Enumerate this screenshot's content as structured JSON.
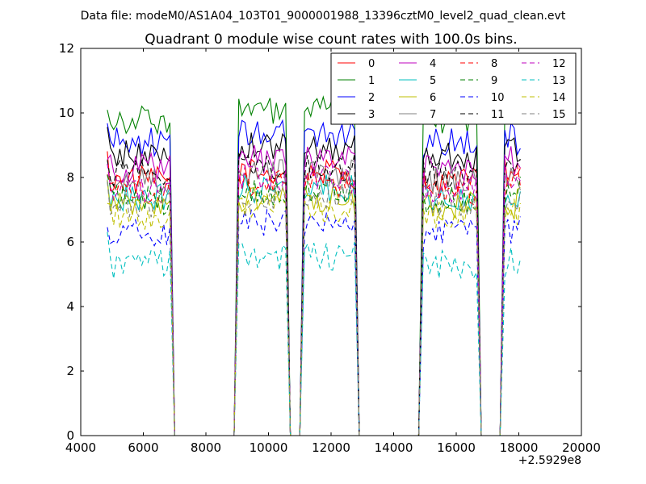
{
  "chart_data": {
    "type": "line",
    "suptitle": "Data file: modeM0/AS1A04_103T01_9000001988_13396cztM0_level2_quad_clean.evt",
    "title": "Quadrant 0 module wise count rates with 100.0s bins.",
    "xlabel": "",
    "ylabel": "",
    "x_offset_label": "+2.5929e8",
    "xlim": [
      4000,
      20000
    ],
    "ylim": [
      0,
      12
    ],
    "xticks": [
      "4000",
      "6000",
      "8000",
      "10000",
      "12000",
      "14000",
      "16000",
      "18000",
      "20000"
    ],
    "yticks": [
      "0",
      "2",
      "4",
      "6",
      "8",
      "10",
      "12"
    ],
    "legend_position": "top-right",
    "bin_seconds": 100,
    "segments": [
      {
        "start": 4850,
        "end": 6850
      },
      {
        "start": 9050,
        "end": 10550
      },
      {
        "start": 11150,
        "end": 12750
      },
      {
        "start": 14950,
        "end": 16650
      },
      {
        "start": 17550,
        "end": 18050
      }
    ],
    "series": [
      {
        "name": "0",
        "color": "#ff0000",
        "dash": "solid",
        "level": 7.9
      },
      {
        "name": "1",
        "color": "#008000",
        "dash": "solid",
        "level": 9.8
      },
      {
        "name": "2",
        "color": "#0000ff",
        "dash": "solid",
        "level": 9.1
      },
      {
        "name": "3",
        "color": "#000000",
        "dash": "solid",
        "level": 8.7
      },
      {
        "name": "4",
        "color": "#bf00bf",
        "dash": "solid",
        "level": 8.3
      },
      {
        "name": "5",
        "color": "#00bfbf",
        "dash": "solid",
        "level": 7.4
      },
      {
        "name": "6",
        "color": "#bfbf00",
        "dash": "solid",
        "level": 7.1
      },
      {
        "name": "7",
        "color": "#808080",
        "dash": "solid",
        "level": 7.9
      },
      {
        "name": "8",
        "color": "#ff0000",
        "dash": "dashed",
        "level": 7.6
      },
      {
        "name": "9",
        "color": "#008000",
        "dash": "dashed",
        "level": 7.3
      },
      {
        "name": "10",
        "color": "#0000ff",
        "dash": "dashed",
        "level": 6.3
      },
      {
        "name": "11",
        "color": "#000000",
        "dash": "dashed",
        "level": 8.1
      },
      {
        "name": "12",
        "color": "#bf00bf",
        "dash": "dashed",
        "level": 7.7
      },
      {
        "name": "13",
        "color": "#00bfbf",
        "dash": "dashed",
        "level": 5.3
      },
      {
        "name": "14",
        "color": "#bfbf00",
        "dash": "dashed",
        "level": 6.8
      },
      {
        "name": "15",
        "color": "#808080",
        "dash": "dashed",
        "level": 7.2
      }
    ]
  }
}
